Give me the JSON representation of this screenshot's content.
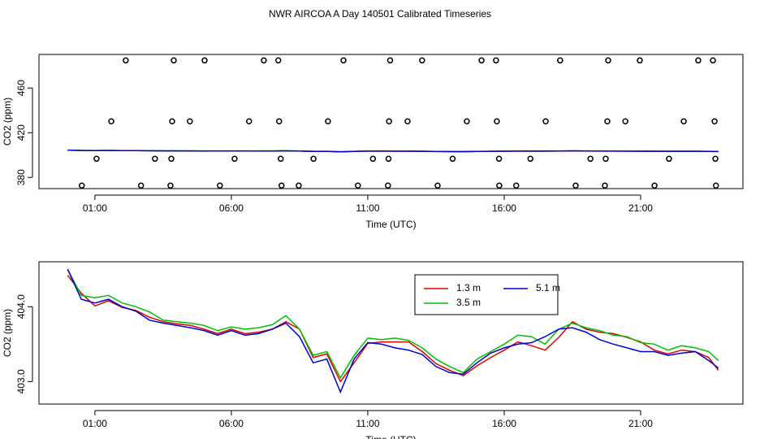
{
  "chart_data": [
    {
      "type": "scatter",
      "title": "NWR AIRCOA A  Day 140501  Calibrated Timeseries",
      "xlabel": "Time (UTC)",
      "ylabel": "CO2 (ppm)",
      "xlim": [
        -1.05,
        24.75
      ],
      "xticks": [
        {
          "value": 1,
          "label": "01:00"
        },
        {
          "value": 6,
          "label": "06:00"
        },
        {
          "value": 11,
          "label": "11:00"
        },
        {
          "value": 16,
          "label": "16:00"
        },
        {
          "value": 21,
          "label": "21:00"
        }
      ],
      "ylim": [
        370,
        490
      ],
      "yticks": [
        380,
        420,
        460
      ],
      "color": "#000000",
      "x": [
        2.13,
        3.89,
        5.02,
        7.19,
        7.72,
        10.11,
        11.82,
        12.99,
        15.17,
        15.7,
        18.05,
        19.81,
        20.97,
        23.11,
        23.65,
        1.6,
        3.83,
        4.48,
        6.65,
        7.75,
        9.54,
        11.78,
        12.46,
        14.63,
        15.73,
        17.52,
        19.78,
        20.44,
        22.58,
        23.71,
        1.06,
        3.2,
        3.8,
        6.12,
        7.81,
        9.01,
        11.19,
        11.76,
        14.11,
        15.81,
        16.96,
        19.16,
        19.72,
        22.04,
        23.74,
        0.52,
        2.69,
        3.77,
        5.58,
        7.84,
        8.47,
        10.64,
        11.74,
        13.56,
        15.82,
        16.44,
        18.62,
        19.69,
        21.51,
        23.76
      ],
      "values": [
        484.7,
        484.7,
        484.7,
        484.7,
        484.7,
        484.7,
        484.7,
        484.7,
        484.7,
        484.7,
        484.7,
        484.7,
        484.7,
        484.7,
        484.7,
        430.2,
        430.2,
        430.2,
        430.2,
        430.2,
        430.2,
        430.2,
        430.2,
        430.2,
        430.2,
        430.2,
        430.2,
        430.2,
        430.2,
        430.2,
        396.7,
        396.7,
        396.7,
        396.7,
        396.7,
        396.7,
        396.7,
        396.7,
        396.7,
        396.7,
        396.7,
        396.7,
        396.7,
        396.7,
        396.7,
        372.7,
        372.7,
        372.7,
        372.7,
        372.7,
        372.7,
        372.7,
        372.7,
        372.7,
        372.7,
        372.7,
        372.7,
        372.7,
        372.7,
        372.7
      ]
    },
    {
      "type": "line",
      "xlabel": "Time (UTC)",
      "ylabel": "CO2 (ppm)",
      "xlim": [
        -1.05,
        24.75
      ],
      "xticks": [
        {
          "value": 1,
          "label": "01:00"
        },
        {
          "value": 6,
          "label": "06:00"
        },
        {
          "value": 11,
          "label": "11:00"
        },
        {
          "value": 16,
          "label": "16:00"
        },
        {
          "value": 21,
          "label": "21:00"
        }
      ],
      "ylim": [
        402.7,
        404.6
      ],
      "yticks": [
        {
          "value": 403,
          "label": "403.0"
        },
        {
          "value": 404,
          "label": "404.0"
        }
      ],
      "legend": "top",
      "x": [
        0,
        0.5,
        1,
        1.5,
        2,
        2.5,
        3,
        3.5,
        4,
        4.5,
        5,
        5.5,
        6,
        6.5,
        7,
        7.5,
        8,
        8.5,
        9,
        9.5,
        10,
        10.5,
        11,
        11.5,
        12,
        12.5,
        13,
        13.5,
        14,
        14.5,
        15,
        15.5,
        16,
        16.5,
        17,
        17.5,
        18,
        18.5,
        19,
        19.5,
        20,
        20.5,
        21,
        21.5,
        22,
        22.5,
        23,
        23.5,
        23.85
      ],
      "series": [
        {
          "name": "1.3 m",
          "color": "#e00000",
          "values": [
            404.42,
            404.18,
            404.01,
            404.08,
            403.99,
            403.95,
            403.86,
            403.8,
            403.77,
            403.75,
            403.7,
            403.64,
            403.7,
            403.64,
            403.66,
            403.7,
            403.8,
            403.7,
            403.32,
            403.37,
            403.0,
            403.25,
            403.51,
            403.53,
            403.53,
            403.53,
            403.4,
            403.24,
            403.15,
            403.08,
            403.21,
            403.32,
            403.42,
            403.53,
            403.48,
            403.42,
            403.59,
            403.8,
            403.7,
            403.66,
            403.64,
            403.59,
            403.53,
            403.42,
            403.37,
            403.42,
            403.4,
            403.32,
            403.15
          ]
        },
        {
          "name": "3.5 m",
          "color": "#00c000",
          "values": [
            404.5,
            404.15,
            404.12,
            404.15,
            404.05,
            404.0,
            403.93,
            403.82,
            403.8,
            403.78,
            403.75,
            403.68,
            403.73,
            403.7,
            403.72,
            403.76,
            403.88,
            403.7,
            403.35,
            403.4,
            403.05,
            403.35,
            403.58,
            403.56,
            403.58,
            403.55,
            403.45,
            403.3,
            403.2,
            403.12,
            403.3,
            403.4,
            403.5,
            403.62,
            403.6,
            403.5,
            403.7,
            403.78,
            403.72,
            403.68,
            403.62,
            403.6,
            403.52,
            403.5,
            403.42,
            403.48,
            403.45,
            403.4,
            403.28
          ]
        },
        {
          "name": "5.1 m",
          "color": "#0000d0",
          "values": [
            404.5,
            404.1,
            404.05,
            404.1,
            404.0,
            403.94,
            403.82,
            403.78,
            403.75,
            403.72,
            403.68,
            403.62,
            403.68,
            403.62,
            403.64,
            403.7,
            403.78,
            403.6,
            403.25,
            403.3,
            402.86,
            403.3,
            403.52,
            403.5,
            403.45,
            403.42,
            403.36,
            403.2,
            403.12,
            403.1,
            403.25,
            403.38,
            403.45,
            403.5,
            403.52,
            403.6,
            403.7,
            403.72,
            403.66,
            403.56,
            403.5,
            403.45,
            403.4,
            403.4,
            403.35,
            403.38,
            403.4,
            403.28,
            403.18
          ]
        }
      ]
    }
  ]
}
